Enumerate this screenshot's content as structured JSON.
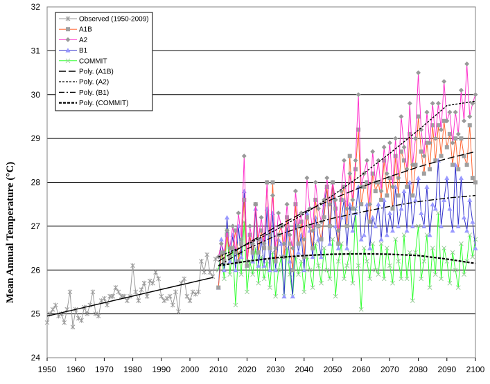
{
  "chart_data": {
    "type": "line",
    "ylabel": "Mean Annual Temperature (°C)",
    "xlim": [
      1950,
      2100
    ],
    "ylim": [
      24,
      32
    ],
    "xticks": [
      1950,
      1960,
      1970,
      1980,
      1990,
      2000,
      2010,
      2020,
      2030,
      2040,
      2050,
      2060,
      2070,
      2080,
      2090,
      2100
    ],
    "yticks": [
      24,
      25,
      26,
      27,
      28,
      29,
      30,
      31,
      32
    ],
    "grid": "horizontal",
    "legend": {
      "placement": "top-left",
      "entries": [
        "Observed (1950-2009)",
        "A1B",
        "A2",
        "B1",
        "COMMIT",
        "Poly. (A1B)",
        "Poly. (A2)",
        "Poly. (B1)",
        "Poly. (COMMIT)"
      ]
    },
    "series": [
      {
        "name": "Observed (1950-2009)",
        "color": "#999999",
        "marker": "star",
        "x": [
          1950,
          1951,
          1952,
          1953,
          1954,
          1955,
          1956,
          1957,
          1958,
          1959,
          1960,
          1961,
          1962,
          1963,
          1964,
          1965,
          1966,
          1967,
          1968,
          1969,
          1970,
          1971,
          1972,
          1973,
          1974,
          1975,
          1976,
          1977,
          1978,
          1979,
          1980,
          1981,
          1982,
          1983,
          1984,
          1985,
          1986,
          1987,
          1988,
          1989,
          1990,
          1991,
          1992,
          1993,
          1994,
          1995,
          1996,
          1997,
          1998,
          1999,
          2000,
          2001,
          2002,
          2003,
          2004,
          2005,
          2006,
          2007,
          2008,
          2009
        ],
        "values": [
          24.8,
          25.0,
          25.1,
          25.2,
          24.95,
          25.0,
          24.8,
          25.1,
          25.5,
          24.7,
          25.1,
          24.9,
          24.85,
          25.15,
          25.0,
          25.2,
          25.5,
          25.0,
          24.95,
          25.3,
          25.35,
          25.2,
          25.4,
          25.4,
          25.6,
          25.5,
          25.4,
          25.4,
          25.3,
          25.4,
          26.1,
          25.5,
          25.3,
          25.55,
          25.7,
          25.4,
          25.75,
          25.7,
          25.95,
          25.8,
          25.4,
          25.3,
          25.35,
          25.4,
          25.2,
          25.5,
          25.05,
          25.7,
          25.8,
          25.4,
          25.3,
          25.5,
          25.45,
          25.5,
          26.2,
          25.95,
          26.35,
          25.95,
          25.85,
          26.25
        ]
      },
      {
        "name": "A1B",
        "color": "#a0a0a0",
        "line_color": "#ff6633",
        "marker": "square",
        "x": [
          2010,
          2011,
          2012,
          2013,
          2014,
          2015,
          2016,
          2017,
          2018,
          2019,
          2020,
          2021,
          2022,
          2023,
          2024,
          2025,
          2026,
          2027,
          2028,
          2029,
          2030,
          2031,
          2032,
          2033,
          2034,
          2035,
          2036,
          2037,
          2038,
          2039,
          2040,
          2041,
          2042,
          2043,
          2044,
          2045,
          2046,
          2047,
          2048,
          2049,
          2050,
          2051,
          2052,
          2053,
          2054,
          2055,
          2056,
          2057,
          2058,
          2059,
          2060,
          2061,
          2062,
          2063,
          2064,
          2065,
          2066,
          2067,
          2068,
          2069,
          2070,
          2071,
          2072,
          2073,
          2074,
          2075,
          2076,
          2077,
          2078,
          2079,
          2080,
          2081,
          2082,
          2083,
          2084,
          2085,
          2086,
          2087,
          2088,
          2089,
          2090,
          2091,
          2092,
          2093,
          2094,
          2095,
          2096,
          2097,
          2098,
          2099,
          2100
        ],
        "values": [
          25.6,
          26.4,
          26.2,
          26.8,
          26.3,
          26.5,
          26.9,
          26.2,
          26.6,
          27.6,
          26.1,
          26.8,
          26.4,
          27.5,
          26.4,
          26.9,
          26.5,
          28.0,
          26.5,
          28.0,
          26.2,
          26.8,
          27.0,
          26.3,
          27.2,
          26.6,
          26.0,
          27.5,
          26.6,
          27.1,
          26.3,
          27.2,
          27.0,
          26.5,
          27.6,
          27.0,
          26.7,
          27.2,
          27.9,
          27.0,
          28.0,
          27.4,
          26.6,
          27.6,
          27.9,
          27.0,
          28.6,
          27.4,
          28.3,
          29.2,
          27.5,
          27.9,
          28.0,
          27.1,
          28.2,
          27.8,
          28.0,
          27.6,
          28.5,
          27.7,
          28.1,
          27.4,
          28.6,
          27.7,
          28.7,
          28.5,
          27.9,
          29.1,
          27.7,
          28.4,
          29.5,
          28.7,
          28.2,
          28.9,
          28.3,
          29.3,
          28.5,
          29.3,
          28.6,
          29.4,
          28.8,
          29.1,
          28.4,
          29.0,
          28.3,
          29.0,
          28.6,
          28.4,
          29.3,
          28.1,
          28.0
        ]
      },
      {
        "name": "A2",
        "color": "#999999",
        "line_color": "#ff33cc",
        "marker": "diamond",
        "x": [
          2010,
          2011,
          2012,
          2013,
          2014,
          2015,
          2016,
          2017,
          2018,
          2019,
          2020,
          2021,
          2022,
          2023,
          2024,
          2025,
          2026,
          2027,
          2028,
          2029,
          2030,
          2031,
          2032,
          2033,
          2034,
          2035,
          2036,
          2037,
          2038,
          2039,
          2040,
          2041,
          2042,
          2043,
          2044,
          2045,
          2046,
          2047,
          2048,
          2049,
          2050,
          2051,
          2052,
          2053,
          2054,
          2055,
          2056,
          2057,
          2058,
          2059,
          2060,
          2061,
          2062,
          2063,
          2064,
          2065,
          2066,
          2067,
          2068,
          2069,
          2070,
          2071,
          2072,
          2073,
          2074,
          2075,
          2076,
          2077,
          2078,
          2079,
          2080,
          2081,
          2082,
          2083,
          2084,
          2085,
          2086,
          2087,
          2088,
          2089,
          2090,
          2091,
          2092,
          2093,
          2094,
          2095,
          2096,
          2097,
          2098,
          2099,
          2100
        ],
        "values": [
          26.3,
          26.6,
          26.4,
          26.9,
          26.5,
          27.0,
          26.4,
          27.3,
          26.7,
          28.6,
          26.2,
          27.0,
          26.6,
          27.5,
          26.7,
          27.2,
          26.6,
          28.0,
          26.8,
          27.7,
          26.5,
          27.3,
          27.0,
          26.6,
          27.5,
          26.8,
          26.5,
          27.8,
          27.0,
          27.3,
          26.7,
          28.1,
          27.4,
          26.9,
          28.0,
          27.4,
          27.1,
          27.6,
          28.1,
          27.5,
          28.0,
          27.6,
          26.9,
          27.8,
          28.5,
          27.4,
          28.2,
          27.6,
          28.5,
          30.0,
          27.9,
          28.2,
          28.5,
          27.5,
          28.7,
          28.0,
          28.5,
          27.8,
          28.8,
          28.2,
          28.9,
          27.9,
          29.0,
          28.1,
          29.5,
          28.8,
          28.3,
          29.8,
          28.4,
          29.0,
          30.5,
          29.2,
          28.6,
          29.6,
          28.9,
          29.8,
          29.0,
          29.8,
          29.2,
          30.3,
          29.4,
          29.6,
          28.9,
          29.6,
          29.1,
          30.1,
          29.4,
          30.7,
          29.5,
          29.8,
          30.0
        ]
      },
      {
        "name": "B1",
        "color": "#9999ff",
        "line_color": "#3333cc",
        "marker": "triangle",
        "x": [
          2010,
          2011,
          2012,
          2013,
          2014,
          2015,
          2016,
          2017,
          2018,
          2019,
          2020,
          2021,
          2022,
          2023,
          2024,
          2025,
          2026,
          2027,
          2028,
          2029,
          2030,
          2031,
          2032,
          2033,
          2034,
          2035,
          2036,
          2037,
          2038,
          2039,
          2040,
          2041,
          2042,
          2043,
          2044,
          2045,
          2046,
          2047,
          2048,
          2049,
          2050,
          2051,
          2052,
          2053,
          2054,
          2055,
          2056,
          2057,
          2058,
          2059,
          2060,
          2061,
          2062,
          2063,
          2064,
          2065,
          2066,
          2067,
          2068,
          2069,
          2070,
          2071,
          2072,
          2073,
          2074,
          2075,
          2076,
          2077,
          2078,
          2079,
          2080,
          2081,
          2082,
          2083,
          2084,
          2085,
          2086,
          2087,
          2088,
          2089,
          2090,
          2091,
          2092,
          2093,
          2094,
          2095,
          2096,
          2097,
          2098,
          2099,
          2100
        ],
        "values": [
          25.6,
          26.7,
          26.0,
          27.2,
          26.2,
          26.8,
          26.0,
          27.0,
          26.3,
          27.8,
          26.1,
          26.8,
          26.2,
          27.4,
          26.1,
          26.7,
          26.1,
          27.4,
          26.0,
          27.3,
          26.0,
          26.7,
          26.6,
          25.4,
          27.0,
          26.2,
          25.4,
          27.1,
          26.4,
          26.8,
          26.0,
          27.3,
          26.9,
          26.3,
          27.2,
          26.7,
          26.3,
          27.5,
          27.9,
          26.6,
          28.0,
          27.0,
          26.5,
          27.2,
          27.6,
          26.5,
          27.5,
          26.9,
          27.3,
          27.9,
          26.7,
          26.8,
          27.5,
          26.5,
          27.2,
          27.0,
          27.5,
          26.7,
          27.6,
          26.8,
          27.3,
          26.9,
          27.9,
          27.0,
          27.4,
          27.8,
          26.9,
          28.0,
          27.0,
          27.6,
          28.1,
          27.3,
          27.0,
          27.9,
          26.8,
          27.5,
          27.4,
          28.5,
          27.0,
          27.6,
          28.1,
          27.4,
          26.9,
          28.4,
          27.0,
          28.1,
          27.2,
          26.9,
          27.6,
          27.1,
          26.5
        ]
      },
      {
        "name": "COMMIT",
        "color": "#99cc99",
        "line_color": "#33ff33",
        "marker": "x",
        "x": [
          2010,
          2011,
          2012,
          2013,
          2014,
          2015,
          2016,
          2017,
          2018,
          2019,
          2020,
          2021,
          2022,
          2023,
          2024,
          2025,
          2026,
          2027,
          2028,
          2029,
          2030,
          2031,
          2032,
          2033,
          2034,
          2035,
          2036,
          2037,
          2038,
          2039,
          2040,
          2041,
          2042,
          2043,
          2044,
          2045,
          2046,
          2047,
          2048,
          2049,
          2050,
          2051,
          2052,
          2053,
          2054,
          2055,
          2056,
          2057,
          2058,
          2059,
          2060,
          2061,
          2062,
          2063,
          2064,
          2065,
          2066,
          2067,
          2068,
          2069,
          2070,
          2071,
          2072,
          2073,
          2074,
          2075,
          2076,
          2077,
          2078,
          2079,
          2080,
          2081,
          2082,
          2083,
          2084,
          2085,
          2086,
          2087,
          2088,
          2089,
          2090,
          2091,
          2092,
          2093,
          2094,
          2095,
          2096,
          2097,
          2098,
          2099,
          2100
        ],
        "values": [
          26.0,
          26.4,
          25.8,
          26.9,
          25.9,
          26.5,
          25.2,
          26.4,
          25.9,
          27.1,
          25.5,
          26.2,
          25.9,
          26.5,
          25.7,
          26.3,
          25.8,
          26.2,
          25.6,
          26.4,
          25.4,
          26.0,
          26.3,
          25.4,
          26.5,
          25.9,
          25.4,
          26.3,
          25.9,
          26.2,
          25.5,
          26.3,
          26.0,
          25.6,
          26.6,
          26.1,
          25.7,
          26.5,
          26.0,
          25.8,
          26.7,
          25.4,
          26.2,
          26.6,
          25.8,
          26.1,
          26.4,
          25.7,
          27.4,
          26.1,
          25.1,
          26.5,
          26.2,
          25.8,
          26.6,
          26.0,
          25.9,
          26.6,
          25.8,
          26.5,
          26.1,
          25.7,
          26.7,
          26.2,
          25.8,
          26.8,
          25.8,
          26.4,
          25.3,
          26.4,
          27.0,
          25.8,
          26.2,
          26.8,
          25.6,
          26.5,
          25.9,
          27.3,
          25.8,
          26.5,
          26.2,
          25.7,
          26.4,
          26.0,
          25.6,
          26.6,
          25.9,
          26.2,
          26.8,
          26.3,
          26.7
        ]
      },
      {
        "name": "Poly. (A1B)",
        "color": "#000000",
        "dash": "long",
        "x": [
          2010,
          2020,
          2030,
          2040,
          2050,
          2060,
          2070,
          2080,
          2090,
          2100
        ],
        "values": [
          26.2,
          26.6,
          26.98,
          27.32,
          27.62,
          27.89,
          28.13,
          28.35,
          28.54,
          28.7
        ]
      },
      {
        "name": "Poly. (A2)",
        "color": "#000000",
        "dash": "short",
        "x": [
          2010,
          2020,
          2030,
          2040,
          2050,
          2060,
          2070,
          2080,
          2090,
          2100
        ],
        "values": [
          26.3,
          26.58,
          26.91,
          27.28,
          27.7,
          28.16,
          28.66,
          29.19,
          29.75,
          29.85
        ]
      },
      {
        "name": "Poly. (B1)",
        "color": "#000000",
        "dash": "dashdot",
        "x": [
          2010,
          2020,
          2030,
          2040,
          2050,
          2060,
          2070,
          2080,
          2090,
          2100
        ],
        "values": [
          26.1,
          26.48,
          26.78,
          27.0,
          27.18,
          27.32,
          27.45,
          27.56,
          27.64,
          27.7
        ]
      },
      {
        "name": "Poly. (COMMIT)",
        "color": "#000000",
        "dash": "thick",
        "x": [
          2010,
          2020,
          2030,
          2040,
          2050,
          2060,
          2070,
          2080,
          2090,
          2100
        ],
        "values": [
          26.1,
          26.2,
          26.28,
          26.33,
          26.36,
          26.37,
          26.36,
          26.33,
          26.25,
          26.15
        ]
      },
      {
        "name": "Observed trend",
        "color": "#000000",
        "dash": "solid",
        "x": [
          1950,
          2008
        ],
        "values": [
          24.95,
          25.83
        ]
      }
    ]
  }
}
